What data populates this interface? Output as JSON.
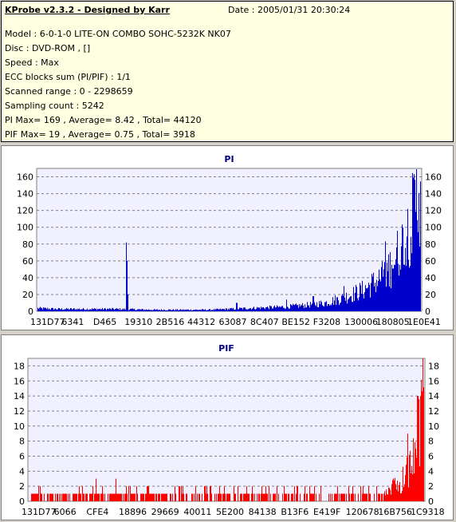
{
  "header": {
    "title": "KProbe v2.3.2 - Designed by Karr",
    "date": "Date : 2005/01/31 20:30:24",
    "lines": [
      "Model : 6-0-1-0 LITE-ON COMBO SOHC-5232K NK07",
      "Disc : DVD-ROM ,  []",
      "Speed : Max",
      "ECC blocks sum (PI/PIF) : 1/1",
      "Scanned range : 0 - 2298659",
      "Sampling count : 5242",
      "PI Max= 169 , Average= 8.42 , Total= 44120",
      "PIF Max= 19 , Average= 0.75 , Total= 3918"
    ]
  },
  "chart_data": [
    {
      "type": "bar",
      "title": "PI",
      "color": "#0000cc",
      "ylim": [
        0,
        170
      ],
      "yticks": [
        0,
        20,
        40,
        60,
        80,
        100,
        120,
        140,
        160
      ],
      "xticks": [
        "131D77",
        "6341",
        "D465",
        "19310",
        "2B516",
        "44312",
        "63087",
        "8C407",
        "BE152",
        "F3208",
        "130006",
        "180805",
        "1E0E41"
      ],
      "grid": true,
      "profile": [
        [
          0.0,
          4
        ],
        [
          0.05,
          3
        ],
        [
          0.1,
          3
        ],
        [
          0.2,
          3
        ],
        [
          0.3,
          2
        ],
        [
          0.4,
          2
        ],
        [
          0.45,
          2
        ],
        [
          0.5,
          3
        ],
        [
          0.55,
          4
        ],
        [
          0.6,
          5
        ],
        [
          0.65,
          6
        ],
        [
          0.7,
          8
        ],
        [
          0.75,
          11
        ],
        [
          0.8,
          18
        ],
        [
          0.85,
          28
        ],
        [
          0.9,
          45
        ],
        [
          0.93,
          65
        ],
        [
          0.96,
          95
        ],
        [
          0.98,
          125
        ],
        [
          0.995,
          155
        ],
        [
          1.0,
          169
        ]
      ],
      "spikes": [
        [
          0.232,
          82
        ],
        [
          0.234,
          60
        ],
        [
          0.236,
          20
        ],
        [
          0.52,
          10
        ],
        [
          0.65,
          14
        ],
        [
          0.72,
          18
        ],
        [
          0.8,
          30
        ]
      ],
      "max": 169
    },
    {
      "type": "bar",
      "title": "PIF",
      "color": "#ff0000",
      "ylim": [
        0,
        19
      ],
      "yticks": [
        0,
        2,
        4,
        6,
        8,
        10,
        12,
        14,
        16,
        18
      ],
      "xticks": [
        "131D77",
        "6066",
        "CFE4",
        "18896",
        "29669",
        "40011",
        "5E200",
        "84138",
        "B13F6",
        "E419F",
        "120678",
        "16B756",
        "1C9318"
      ],
      "grid": true,
      "profile": [
        [
          0.0,
          1
        ],
        [
          0.25,
          1
        ],
        [
          0.3,
          1
        ],
        [
          0.5,
          0.8
        ],
        [
          0.6,
          0.6
        ],
        [
          0.7,
          0.5
        ],
        [
          0.85,
          0.8
        ],
        [
          0.9,
          1.5
        ],
        [
          0.94,
          3
        ],
        [
          0.97,
          6
        ],
        [
          0.99,
          12
        ],
        [
          1.0,
          19
        ]
      ],
      "spikes": [
        [
          0.17,
          3
        ],
        [
          0.22,
          3
        ],
        [
          0.6,
          2
        ],
        [
          0.68,
          2
        ],
        [
          0.82,
          2
        ],
        [
          0.96,
          9
        ],
        [
          0.985,
          14
        ],
        [
          0.998,
          19
        ]
      ],
      "max": 19
    }
  ]
}
